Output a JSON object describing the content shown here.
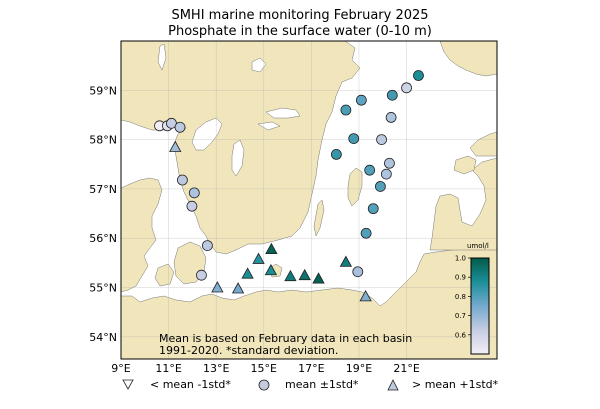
{
  "title_line1": "SMHI marine monitoring February 2025",
  "title_line2": "Phosphate in the surface water (0-10 m)",
  "lon_ticks": [
    {
      "label": "9°E",
      "lon": 9
    },
    {
      "label": "11°E",
      "lon": 11
    },
    {
      "label": "13°E",
      "lon": 13
    },
    {
      "label": "15°E",
      "lon": 15
    },
    {
      "label": "17°E",
      "lon": 17
    },
    {
      "label": "19°E",
      "lon": 19
    },
    {
      "label": "21°E",
      "lon": 21
    }
  ],
  "lat_ticks": [
    {
      "label": "59°N",
      "lat": 59
    },
    {
      "label": "58°N",
      "lat": 58
    },
    {
      "label": "57°N",
      "lat": 57
    },
    {
      "label": "56°N",
      "lat": 56
    },
    {
      "label": "55°N",
      "lat": 55
    },
    {
      "label": "54°N",
      "lat": 54
    }
  ],
  "map_extent": {
    "lon": [
      9,
      24.8
    ],
    "lat": [
      53.55,
      60.0
    ]
  },
  "colors": {
    "land": "#f0e5bb",
    "sea": "#ffffff",
    "coast": "#777777"
  },
  "colorbar": {
    "label": "umol/l",
    "range": [
      0.5,
      1.0
    ],
    "ticks": [
      "1.0",
      "0.9",
      "0.8",
      "0.7",
      "0.6"
    ],
    "stops": [
      "#f3eef6",
      "#c5cde3",
      "#74a9cf",
      "#1c8f98",
      "#015a4a"
    ]
  },
  "note_line1": "Mean is based on February data in each basin",
  "note_line2": "1991-2020. *standard deviation.",
  "legend": [
    {
      "symbol": "triangle-down",
      "label": "< mean -1std*"
    },
    {
      "symbol": "circle",
      "label": "mean ±1std*"
    },
    {
      "symbol": "triangle-up",
      "label": "> mean +1std*"
    }
  ],
  "stations": [
    {
      "lon": 10.62,
      "lat": 58.28,
      "value": 0.46,
      "symbol": "circle"
    },
    {
      "lon": 10.95,
      "lat": 58.28,
      "value": 0.55,
      "symbol": "circle"
    },
    {
      "lon": 11.12,
      "lat": 58.33,
      "value": 0.62,
      "symbol": "circle"
    },
    {
      "lon": 11.48,
      "lat": 58.25,
      "value": 0.64,
      "symbol": "circle"
    },
    {
      "lon": 11.28,
      "lat": 57.85,
      "value": 0.68,
      "symbol": "triangle-up"
    },
    {
      "lon": 11.58,
      "lat": 57.18,
      "value": 0.64,
      "symbol": "circle"
    },
    {
      "lon": 12.08,
      "lat": 56.92,
      "value": 0.66,
      "symbol": "circle"
    },
    {
      "lon": 11.98,
      "lat": 56.65,
      "value": 0.62,
      "symbol": "circle"
    },
    {
      "lon": 12.63,
      "lat": 55.85,
      "value": 0.64,
      "symbol": "circle"
    },
    {
      "lon": 12.38,
      "lat": 55.25,
      "value": 0.62,
      "symbol": "circle"
    },
    {
      "lon": 13.05,
      "lat": 55.0,
      "value": 0.73,
      "symbol": "triangle-up"
    },
    {
      "lon": 13.92,
      "lat": 54.98,
      "value": 0.75,
      "symbol": "triangle-up"
    },
    {
      "lon": 14.32,
      "lat": 55.28,
      "value": 0.88,
      "symbol": "triangle-up"
    },
    {
      "lon": 14.78,
      "lat": 55.58,
      "value": 0.86,
      "symbol": "triangle-up"
    },
    {
      "lon": 15.3,
      "lat": 55.35,
      "value": 0.88,
      "symbol": "triangle-up"
    },
    {
      "lon": 15.32,
      "lat": 55.78,
      "value": 0.98,
      "symbol": "triangle-up"
    },
    {
      "lon": 16.12,
      "lat": 55.23,
      "value": 0.92,
      "symbol": "triangle-up"
    },
    {
      "lon": 16.72,
      "lat": 55.25,
      "value": 0.94,
      "symbol": "triangle-up"
    },
    {
      "lon": 17.3,
      "lat": 55.18,
      "value": 0.98,
      "symbol": "triangle-up"
    },
    {
      "lon": 18.45,
      "lat": 55.52,
      "value": 0.92,
      "symbol": "triangle-up"
    },
    {
      "lon": 18.95,
      "lat": 55.32,
      "value": 0.67,
      "symbol": "circle"
    },
    {
      "lon": 19.28,
      "lat": 54.82,
      "value": 0.73,
      "symbol": "triangle-up"
    },
    {
      "lon": 19.3,
      "lat": 56.1,
      "value": 0.8,
      "symbol": "circle"
    },
    {
      "lon": 19.6,
      "lat": 56.6,
      "value": 0.8,
      "symbol": "circle"
    },
    {
      "lon": 19.9,
      "lat": 57.05,
      "value": 0.8,
      "symbol": "circle"
    },
    {
      "lon": 19.45,
      "lat": 57.38,
      "value": 0.8,
      "symbol": "circle"
    },
    {
      "lon": 20.15,
      "lat": 57.3,
      "value": 0.66,
      "symbol": "circle"
    },
    {
      "lon": 20.28,
      "lat": 57.52,
      "value": 0.66,
      "symbol": "circle"
    },
    {
      "lon": 19.95,
      "lat": 58.0,
      "value": 0.64,
      "symbol": "circle"
    },
    {
      "lon": 18.78,
      "lat": 58.02,
      "value": 0.82,
      "symbol": "circle"
    },
    {
      "lon": 18.05,
      "lat": 57.7,
      "value": 0.84,
      "symbol": "circle"
    },
    {
      "lon": 18.45,
      "lat": 58.6,
      "value": 0.81,
      "symbol": "circle"
    },
    {
      "lon": 19.1,
      "lat": 58.8,
      "value": 0.78,
      "symbol": "circle"
    },
    {
      "lon": 20.4,
      "lat": 58.9,
      "value": 0.82,
      "symbol": "circle"
    },
    {
      "lon": 20.35,
      "lat": 58.45,
      "value": 0.66,
      "symbol": "circle"
    },
    {
      "lon": 21.0,
      "lat": 59.05,
      "value": 0.6,
      "symbol": "circle"
    },
    {
      "lon": 21.5,
      "lat": 59.3,
      "value": 0.88,
      "symbol": "circle"
    }
  ]
}
